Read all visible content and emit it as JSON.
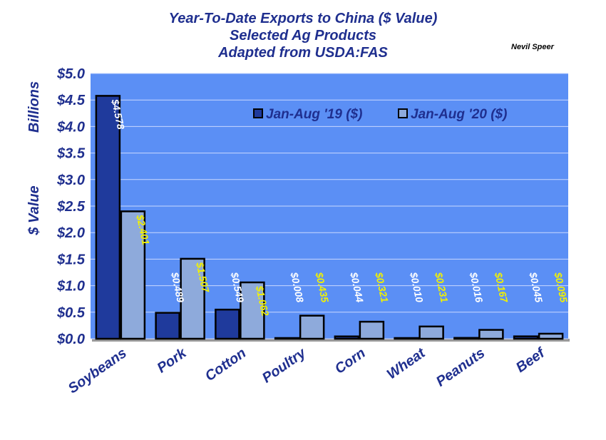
{
  "chart_data": {
    "type": "bar",
    "title": "Year-To-Date Exports to China ($ Value)",
    "subtitle": "Selected Ag Products",
    "subtitle2": "Adapted from USDA:FAS",
    "author": "Nevil Speer",
    "ylabel_top": "Billions",
    "ylabel_bottom": "$ Value",
    "ylim": [
      0,
      5.0
    ],
    "yticks": [
      "$0.0",
      "$0.5",
      "$1.0",
      "$1.5",
      "$2.0",
      "$2.5",
      "$3.0",
      "$3.5",
      "$4.0",
      "$4.5",
      "$5.0"
    ],
    "categories": [
      "Soybeans",
      "Pork",
      "Cotton",
      "Poultry",
      "Corn",
      "Wheat",
      "Peanuts",
      "Beef"
    ],
    "series": [
      {
        "name": "Jan-Aug '19 ($)",
        "values": [
          4.578,
          0.489,
          0.549,
          0.008,
          0.044,
          0.01,
          0.016,
          0.045
        ],
        "labels": [
          "$4.578",
          "$0.489",
          "$0.549",
          "$0.008",
          "$0.044",
          "$0.010",
          "$0.016",
          "$0.045"
        ],
        "color": "#1f3a9c",
        "label_color": "#ffffff"
      },
      {
        "name": "Jan-Aug '20 ($)",
        "values": [
          2.401,
          1.507,
          1.062,
          0.435,
          0.321,
          0.231,
          0.167,
          0.095
        ],
        "labels": [
          "$2.401",
          "$1.507",
          "$1.062",
          "$0.435",
          "$0.321",
          "$0.231",
          "$0.167",
          "$0.095"
        ],
        "color": "#8eaadb",
        "label_color": "#f2f200"
      }
    ],
    "grid": true,
    "legend_position": "top-right",
    "plot_background": "#5b8ff5"
  }
}
